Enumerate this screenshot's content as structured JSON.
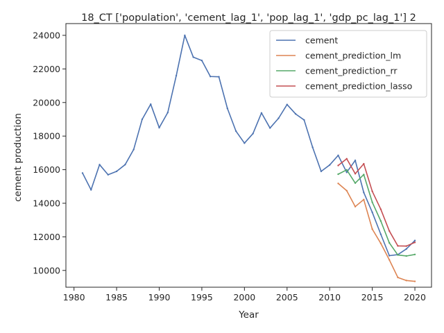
{
  "chart_data": {
    "type": "line",
    "title": "18_CT ['population', 'cement_lag_1', 'pop_lag_1', 'gdp_pc_lag_1'] 2",
    "xlabel": "Year",
    "ylabel": "cement production",
    "xlim": [
      1979.05,
      2021.95
    ],
    "ylim": [
      9000,
      24700
    ],
    "xticks": [
      1980,
      1985,
      1990,
      1995,
      2000,
      2005,
      2010,
      2015,
      2020
    ],
    "yticks": [
      10000,
      12000,
      14000,
      16000,
      18000,
      20000,
      22000,
      24000
    ],
    "grid": false,
    "legend_position": "top-right",
    "series": [
      {
        "name": "cement",
        "color": "#4c72b0",
        "x": [
          1981,
          1982,
          1983,
          1984,
          1985,
          1986,
          1987,
          1988,
          1989,
          1990,
          1991,
          1992,
          1993,
          1994,
          1995,
          1996,
          1997,
          1998,
          1999,
          2000,
          2001,
          2002,
          2003,
          2004,
          2005,
          2006,
          2007,
          2008,
          2009,
          2010,
          2011,
          2012,
          2013,
          2014,
          2015,
          2016,
          2017,
          2018,
          2019,
          2020
        ],
        "y": [
          15800,
          14800,
          16300,
          15700,
          15900,
          16300,
          17200,
          19000,
          19900,
          18500,
          19400,
          21600,
          24000,
          22700,
          22500,
          21550,
          21530,
          19650,
          18300,
          17580,
          18150,
          19380,
          18480,
          19060,
          19880,
          19320,
          18960,
          17330,
          15900,
          16280,
          16850,
          15840,
          16550,
          14640,
          13460,
          12150,
          10880,
          10940,
          11280,
          11780
        ]
      },
      {
        "name": "cement_prediction_lm",
        "color": "#dd8452",
        "x": [
          2011,
          2012,
          2013,
          2014,
          2015,
          2016,
          2017,
          2018,
          2019,
          2020
        ],
        "y": [
          15180,
          14750,
          13800,
          14220,
          12460,
          11610,
          10630,
          9580,
          9400,
          9350
        ]
      },
      {
        "name": "cement_prediction_rr",
        "color": "#55a868",
        "x": [
          2011,
          2012,
          2013,
          2014,
          2015,
          2016,
          2017,
          2018,
          2019,
          2020
        ],
        "y": [
          15730,
          15990,
          15200,
          15710,
          14060,
          12940,
          11640,
          10920,
          10860,
          10950
        ]
      },
      {
        "name": "cement_prediction_lasso",
        "color": "#c44e52",
        "x": [
          2011,
          2012,
          2013,
          2014,
          2015,
          2016,
          2017,
          2018,
          2019,
          2020
        ],
        "y": [
          16250,
          16650,
          15760,
          16350,
          14710,
          13640,
          12350,
          11460,
          11450,
          11670
        ]
      }
    ]
  }
}
